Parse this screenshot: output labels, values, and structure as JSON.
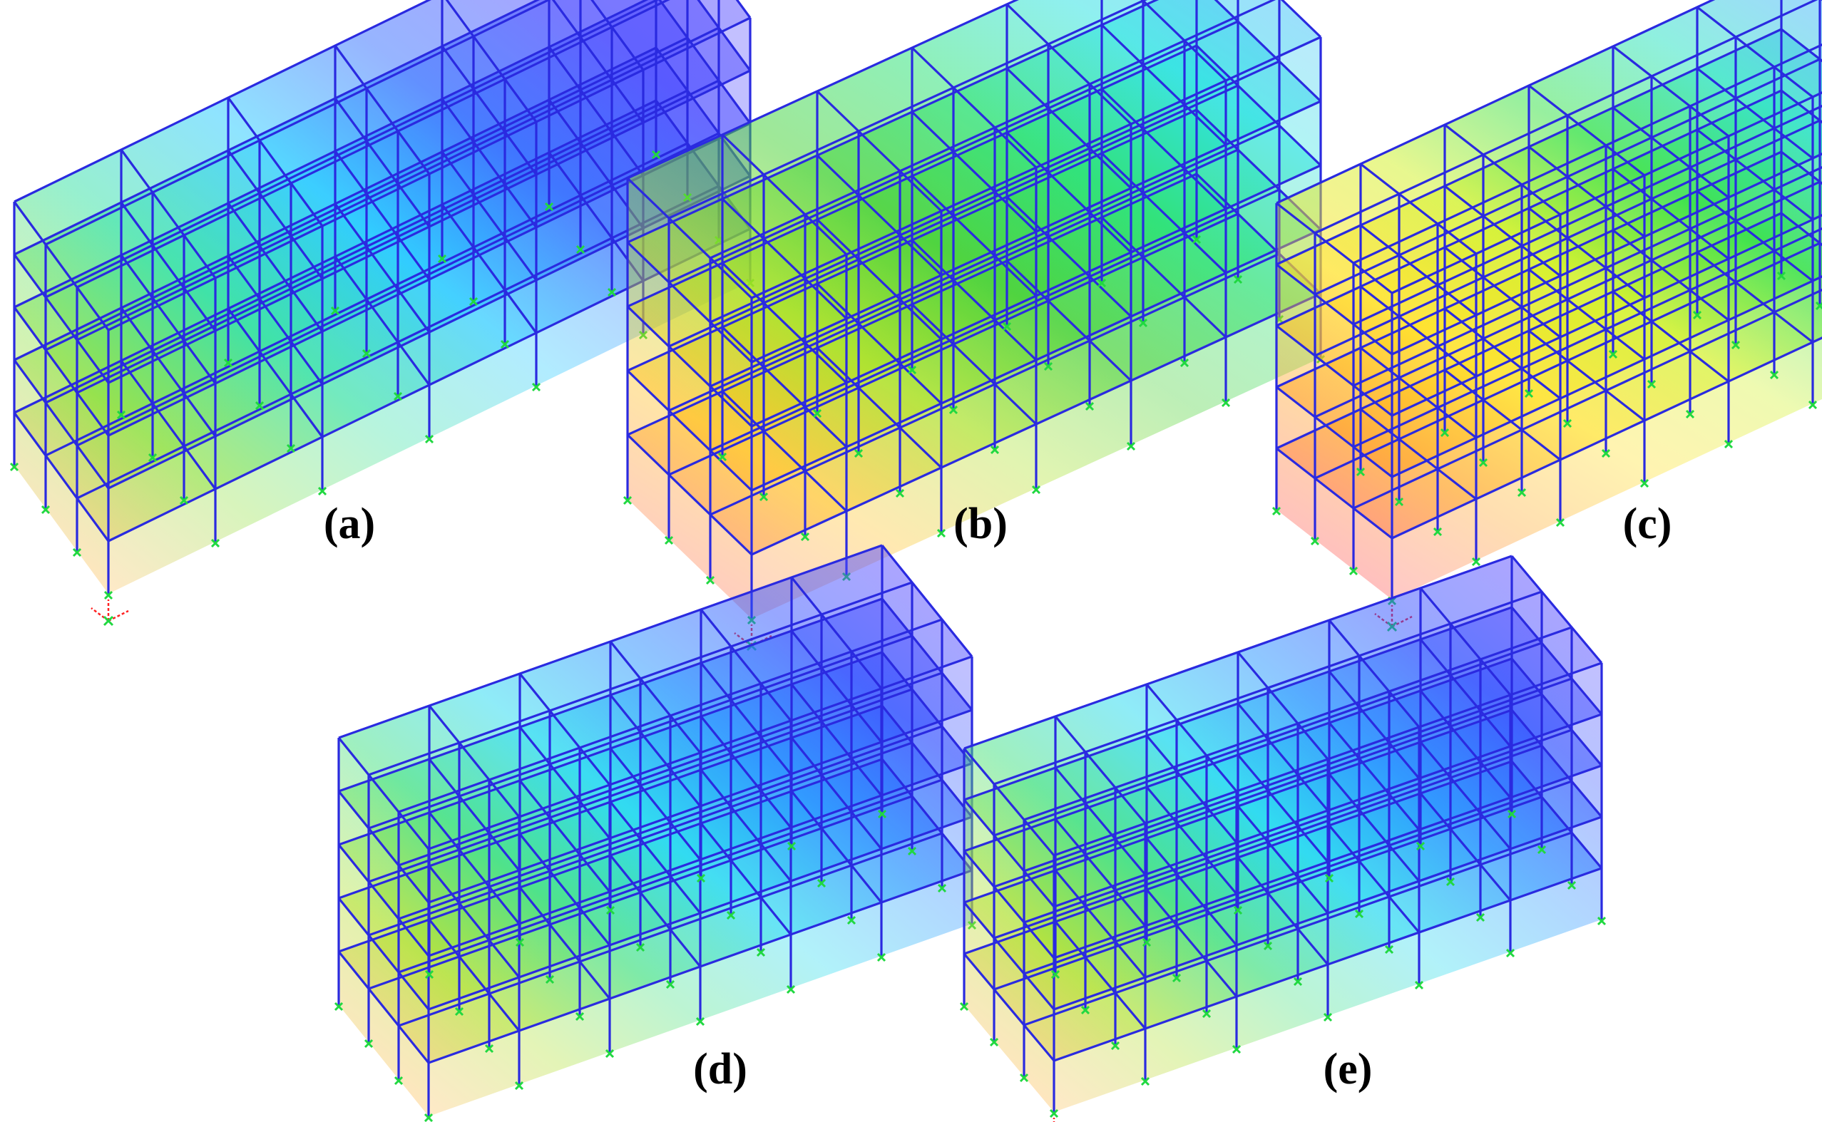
{
  "figure": {
    "panels": [
      {
        "id": "a",
        "caption": "(a)",
        "gradient": [
          "#5a4bff",
          "#4a4cff",
          "#2f6bff",
          "#20c8ff",
          "#30e0a0",
          "#8ee040",
          "#ffc060"
        ]
      },
      {
        "id": "b",
        "caption": "(b)",
        "gradient": [
          "#40b8ff",
          "#20e0e0",
          "#20e070",
          "#40d030",
          "#a8e020",
          "#ffc020",
          "#ff8060"
        ]
      },
      {
        "id": "c",
        "caption": "(c)",
        "gradient": [
          "#40b0ff",
          "#20e0c0",
          "#30e040",
          "#d0f020",
          "#ffe020",
          "#ffa020",
          "#ff6060"
        ]
      },
      {
        "id": "d",
        "caption": "(d)",
        "gradient": [
          "#5a4bff",
          "#3050ff",
          "#2090ff",
          "#20d8f0",
          "#40e080",
          "#b0e030",
          "#ffc060"
        ]
      },
      {
        "id": "e",
        "caption": "(e)",
        "gradient": [
          "#5a4bff",
          "#3050ff",
          "#2090ff",
          "#20d8f0",
          "#40e080",
          "#b0e030",
          "#ffc060"
        ]
      }
    ],
    "colors": {
      "frame_line": "#2a2ae0",
      "support": "#20d840",
      "axis_red": "#ff2020"
    }
  }
}
